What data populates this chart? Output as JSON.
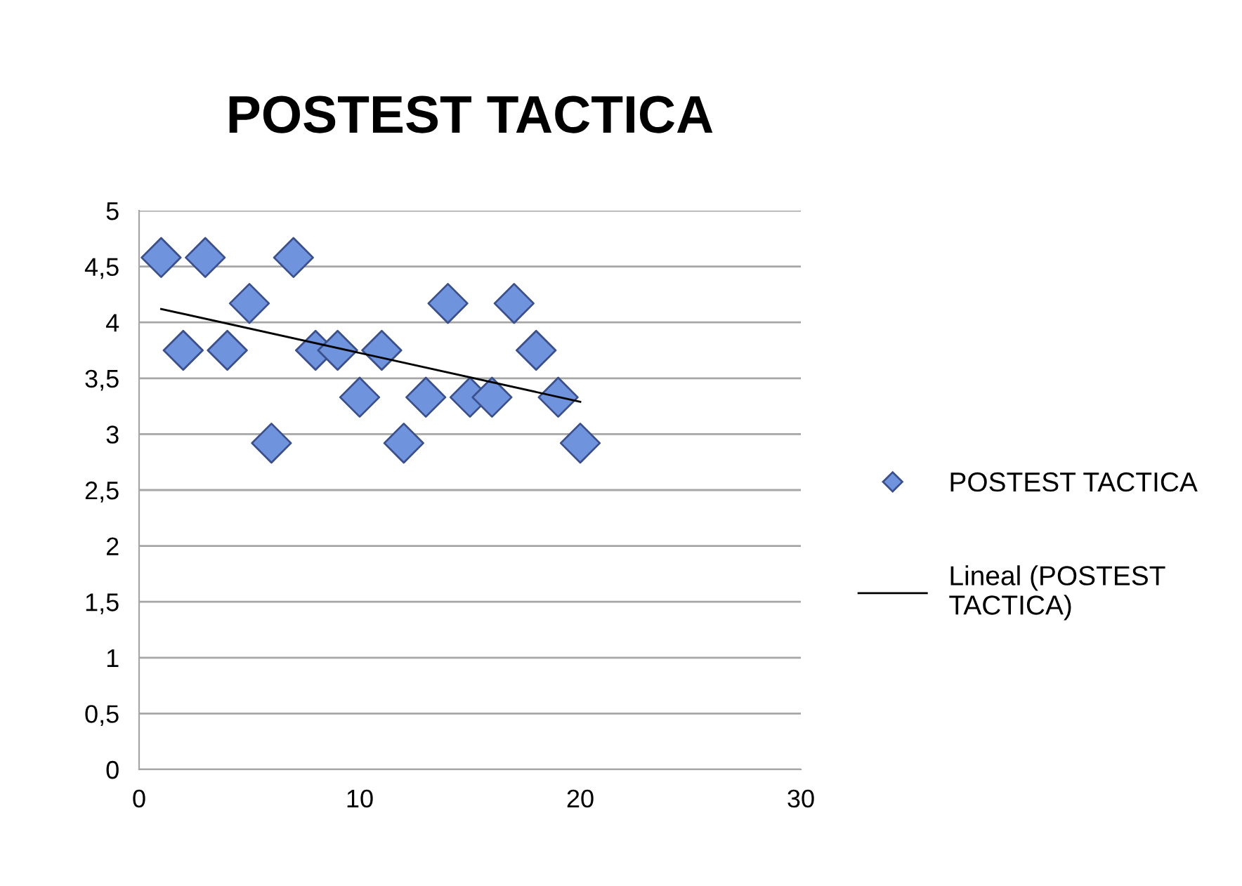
{
  "chart_data": {
    "type": "scatter",
    "title": "POSTEST TACTICA",
    "x": [
      1,
      2,
      3,
      4,
      5,
      6,
      7,
      8,
      9,
      10,
      11,
      12,
      13,
      14,
      15,
      16,
      17,
      18,
      19,
      20
    ],
    "series": [
      {
        "name": "POSTEST TACTICA",
        "color": "#6f93dc",
        "marker": "diamond",
        "values": [
          4.58,
          3.75,
          4.58,
          3.75,
          4.17,
          2.92,
          4.58,
          3.75,
          3.75,
          3.33,
          3.75,
          2.92,
          3.33,
          4.17,
          3.33,
          3.33,
          4.17,
          3.75,
          3.33,
          2.92
        ]
      },
      {
        "name": "Lineal (POSTEST TACTICA)",
        "type": "line",
        "color": "#000000",
        "x": [
          1,
          20
        ],
        "values": [
          4.12,
          3.29
        ]
      }
    ],
    "xlim": [
      0,
      30
    ],
    "xticks": [
      0,
      10,
      20,
      30
    ],
    "ylim": [
      0,
      5
    ],
    "yticks": [
      0,
      {
        "value": 0.5,
        "label": "0,5"
      },
      1,
      {
        "value": 1.5,
        "label": "1,5"
      },
      2,
      {
        "value": 2.5,
        "label": "2,5"
      },
      3,
      {
        "value": 3.5,
        "label": "3,5"
      },
      4,
      {
        "value": 4.5,
        "label": "4,5"
      },
      5
    ],
    "grid": "y",
    "legend": "right"
  }
}
